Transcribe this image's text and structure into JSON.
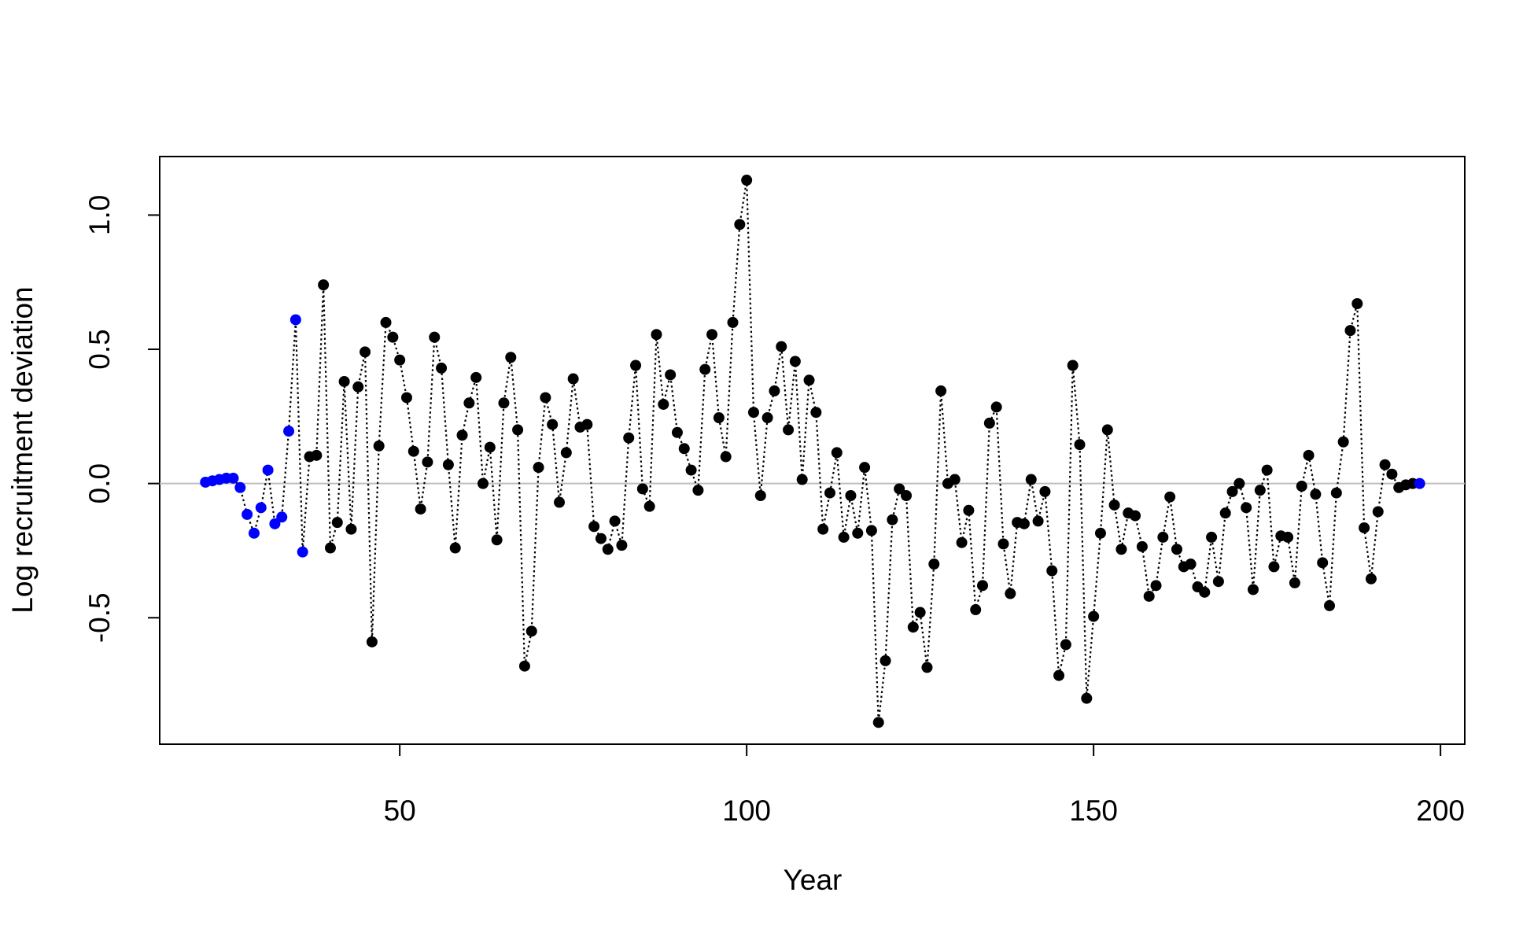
{
  "chart_data": {
    "type": "scatter",
    "xlabel": "Year",
    "ylabel": "Log recruitment deviation",
    "xlim": [
      15.4,
      203.5
    ],
    "xticks": [
      50,
      100,
      150,
      200
    ],
    "ylim": [
      -0.971,
      1.218
    ],
    "yticks": [
      {
        "value": -0.5,
        "label": "-0.5"
      },
      {
        "value": 0,
        "label": "0.0"
      },
      {
        "value": 0.5,
        "label": "0.5"
      },
      {
        "value": 1,
        "label": "1.0"
      }
    ],
    "hline": 0,
    "hline_color": "#bebebe",
    "line_color": "#000000",
    "line_style": "dotted",
    "series": [
      {
        "x": [
          22,
          23,
          24,
          25,
          26,
          27,
          28,
          29,
          30,
          31,
          32,
          33,
          34,
          35,
          36,
          37,
          38,
          39,
          40,
          41,
          42,
          43,
          44,
          45,
          46,
          47,
          48,
          49,
          50,
          51,
          52,
          53,
          54,
          55,
          56,
          57,
          58,
          59,
          60,
          61,
          62,
          63,
          64,
          65,
          66,
          67,
          68,
          69,
          70,
          71,
          72,
          73,
          74,
          75,
          76,
          77,
          78,
          79,
          80,
          81,
          82,
          83,
          84,
          85,
          86,
          87,
          88,
          89,
          90,
          91,
          92,
          93,
          94,
          95,
          96,
          97,
          98,
          99,
          100,
          101,
          102,
          103,
          104,
          105,
          106,
          107,
          108,
          109,
          110,
          111,
          112,
          113,
          114,
          115,
          116,
          117,
          118,
          119,
          120,
          121,
          122,
          123,
          124,
          125,
          126,
          127,
          128,
          129,
          130,
          131,
          132,
          133,
          134,
          135,
          136,
          137,
          138,
          139,
          140,
          141,
          142,
          143,
          144,
          145,
          146,
          147,
          148,
          149,
          150,
          151,
          152,
          153,
          154,
          155,
          156,
          157,
          158,
          159,
          160,
          161,
          162,
          163,
          164,
          165,
          166,
          167,
          168,
          169,
          170,
          171,
          172,
          173,
          174,
          175,
          176,
          177,
          178,
          179,
          180,
          181,
          182,
          183,
          184,
          185,
          186,
          187,
          188,
          189,
          190,
          191,
          192,
          193,
          194,
          195,
          196,
          197
        ],
        "values": [
          0.005,
          0.01,
          0.015,
          0.02,
          0.02,
          -0.015,
          -0.115,
          -0.185,
          -0.09,
          0.05,
          -0.15,
          -0.125,
          0.195,
          0.61,
          -0.255,
          0.1,
          0.105,
          0.74,
          -0.24,
          -0.145,
          0.38,
          -0.17,
          0.36,
          0.49,
          -0.59,
          0.14,
          0.6,
          0.545,
          0.46,
          0.32,
          0.12,
          -0.095,
          0.08,
          0.545,
          0.43,
          0.07,
          -0.24,
          0.18,
          0.3,
          0.395,
          0,
          0.135,
          -0.21,
          0.3,
          0.47,
          0.2,
          -0.68,
          -0.55,
          0.06,
          0.32,
          0.22,
          -0.07,
          0.115,
          0.39,
          0.21,
          0.22,
          -0.16,
          -0.205,
          -0.245,
          -0.14,
          -0.23,
          0.17,
          0.44,
          -0.02,
          -0.085,
          0.555,
          0.295,
          0.405,
          0.19,
          0.13,
          0.05,
          -0.025,
          0.425,
          0.555,
          0.245,
          0.1,
          0.6,
          0.965,
          1.13,
          0.265,
          -0.045,
          0.245,
          0.345,
          0.51,
          0.2,
          0.455,
          0.015,
          0.385,
          0.265,
          -0.17,
          -0.035,
          0.115,
          -0.2,
          -0.045,
          -0.185,
          0.06,
          -0.175,
          -0.89,
          -0.66,
          -0.135,
          -0.02,
          -0.045,
          -0.535,
          -0.48,
          -0.685,
          -0.3,
          0.345,
          0,
          0.015,
          -0.22,
          -0.1,
          -0.47,
          -0.38,
          0.225,
          0.285,
          -0.225,
          -0.41,
          -0.145,
          -0.15,
          0.015,
          -0.14,
          -0.03,
          -0.325,
          -0.715,
          -0.6,
          0.44,
          0.145,
          -0.8,
          -0.495,
          -0.185,
          0.2,
          -0.08,
          -0.245,
          -0.11,
          -0.12,
          -0.235,
          -0.42,
          -0.38,
          -0.2,
          -0.05,
          -0.245,
          -0.31,
          -0.3,
          -0.385,
          -0.405,
          -0.2,
          -0.365,
          -0.11,
          -0.03,
          0,
          -0.09,
          -0.395,
          -0.025,
          0.05,
          -0.31,
          -0.195,
          -0.2,
          -0.37,
          -0.01,
          0.105,
          -0.04,
          -0.295,
          -0.455,
          -0.035,
          0.155,
          0.57,
          0.67,
          -0.165,
          -0.355,
          -0.105,
          0.07,
          0.035,
          -0.015,
          -0.005,
          0,
          0
        ],
        "point_colors": [
          "#0000ff",
          "#0000ff",
          "#0000ff",
          "#0000ff",
          "#0000ff",
          "#0000ff",
          "#0000ff",
          "#0000ff",
          "#0000ff",
          "#0000ff",
          "#0000ff",
          "#0000ff",
          "#0000ff",
          "#0000ff",
          "#0000ff",
          "#000000",
          "#000000",
          "#000000",
          "#000000",
          "#000000",
          "#000000",
          "#000000",
          "#000000",
          "#000000",
          "#000000",
          "#000000",
          "#000000",
          "#000000",
          "#000000",
          "#000000",
          "#000000",
          "#000000",
          "#000000",
          "#000000",
          "#000000",
          "#000000",
          "#000000",
          "#000000",
          "#000000",
          "#000000",
          "#000000",
          "#000000",
          "#000000",
          "#000000",
          "#000000",
          "#000000",
          "#000000",
          "#000000",
          "#000000",
          "#000000",
          "#000000",
          "#000000",
          "#000000",
          "#000000",
          "#000000",
          "#000000",
          "#000000",
          "#000000",
          "#000000",
          "#000000",
          "#000000",
          "#000000",
          "#000000",
          "#000000",
          "#000000",
          "#000000",
          "#000000",
          "#000000",
          "#000000",
          "#000000",
          "#000000",
          "#000000",
          "#000000",
          "#000000",
          "#000000",
          "#000000",
          "#000000",
          "#000000",
          "#000000",
          "#000000",
          "#000000",
          "#000000",
          "#000000",
          "#000000",
          "#000000",
          "#000000",
          "#000000",
          "#000000",
          "#000000",
          "#000000",
          "#000000",
          "#000000",
          "#000000",
          "#000000",
          "#000000",
          "#000000",
          "#000000",
          "#000000",
          "#000000",
          "#000000",
          "#000000",
          "#000000",
          "#000000",
          "#000000",
          "#000000",
          "#000000",
          "#000000",
          "#000000",
          "#000000",
          "#000000",
          "#000000",
          "#000000",
          "#000000",
          "#000000",
          "#000000",
          "#000000",
          "#000000",
          "#000000",
          "#000000",
          "#000000",
          "#000000",
          "#000000",
          "#000000",
          "#000000",
          "#000000",
          "#000000",
          "#000000",
          "#000000",
          "#000000",
          "#000000",
          "#000000",
          "#000000",
          "#000000",
          "#000000",
          "#000000",
          "#000000",
          "#000000",
          "#000000",
          "#000000",
          "#000000",
          "#000000",
          "#000000",
          "#000000",
          "#000000",
          "#000000",
          "#000000",
          "#000000",
          "#000000",
          "#000000",
          "#000000",
          "#000000",
          "#000000",
          "#000000",
          "#000000",
          "#000000",
          "#000000",
          "#000000",
          "#000000",
          "#000000",
          "#000000",
          "#000000",
          "#000000",
          "#000000",
          "#000000",
          "#000000",
          "#000000",
          "#000000",
          "#000000",
          "#000000",
          "#000000",
          "#000000",
          "#000000",
          "#000000",
          "#000000",
          "#000000",
          "#0000ff"
        ]
      }
    ]
  }
}
